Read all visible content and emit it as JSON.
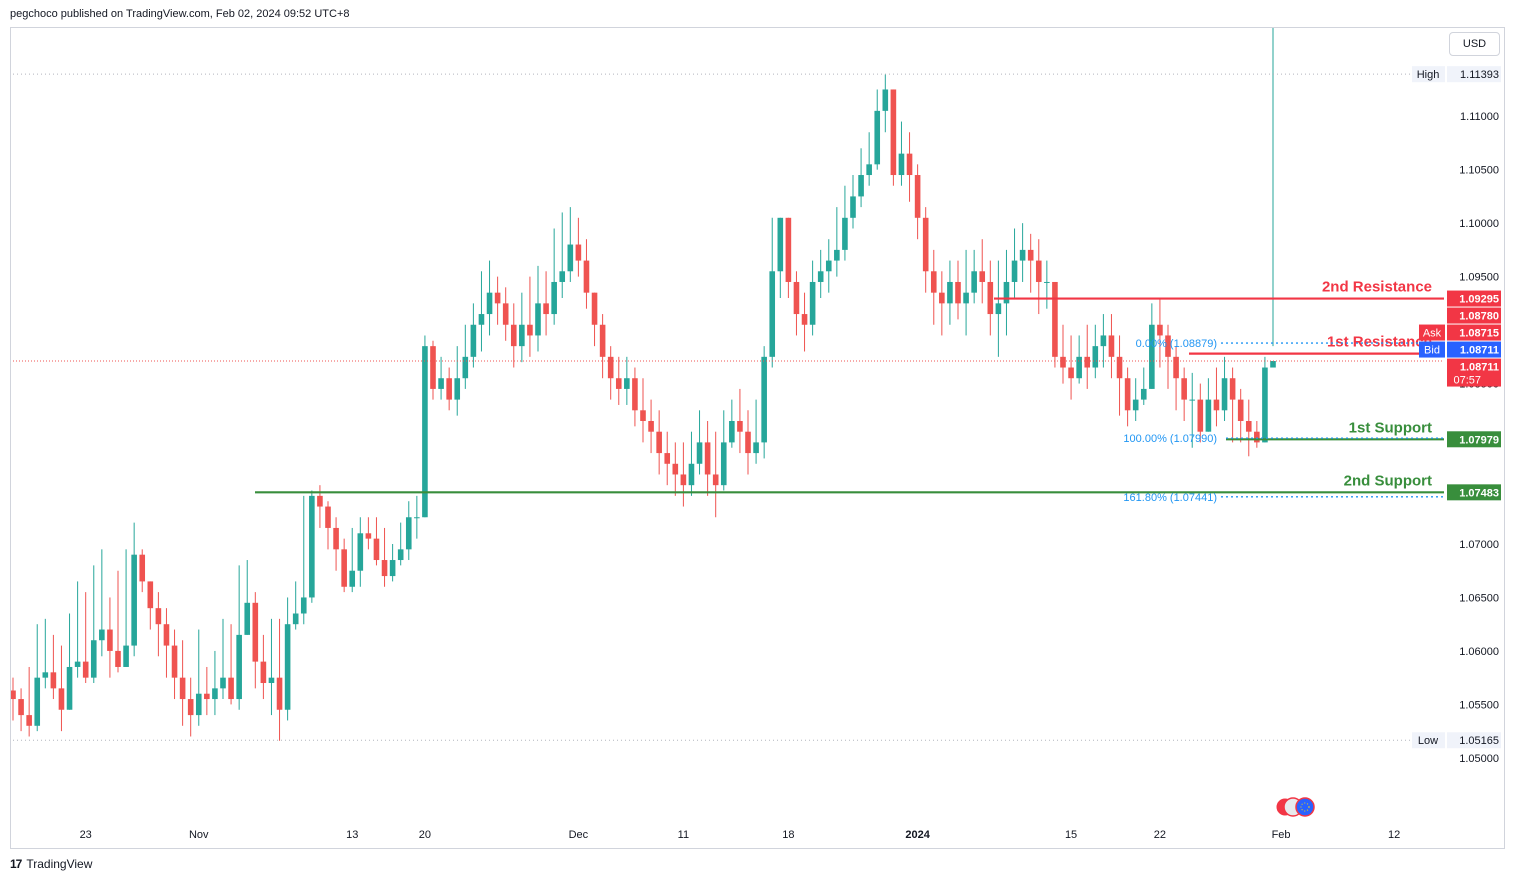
{
  "header": {
    "published": "pegchoco published on TradingView.com, Feb 02, 2024 09:52 UTC+8"
  },
  "currency_button": "USD",
  "footer": {
    "brand": "TradingView",
    "logo": "17"
  },
  "colors": {
    "up": "#26a69a",
    "down": "#ef5350",
    "resistance": "#f23645",
    "support": "#388e3c",
    "bid": "#2962ff",
    "fib": "#2196f3",
    "grid_text": "#131722"
  },
  "chart_data": {
    "type": "candlestick",
    "symbol": "EURUSD",
    "ylim": [
      1.0455,
      1.1175
    ],
    "y_ticks": [
      "1.11000",
      "1.10500",
      "1.10000",
      "1.09500",
      "1.09000",
      "1.08500",
      "1.08000",
      "1.07500",
      "1.07000",
      "1.06500",
      "1.06000",
      "1.05500",
      "1.05000"
    ],
    "x_ticks": [
      "23",
      "Nov",
      "13",
      "20",
      "Dec",
      "11",
      "18",
      "2024",
      "15",
      "22",
      "Feb",
      "12"
    ],
    "high": {
      "label": "High",
      "value": "1.11393"
    },
    "low": {
      "label": "Low",
      "value": "1.05165"
    },
    "price_tags": [
      {
        "value": "1.09295",
        "kind": "resistance"
      },
      {
        "value": "1.08780",
        "kind": "resistance"
      },
      {
        "label": "Ask",
        "value": "1.08715",
        "kind": "ask"
      },
      {
        "label": "Bid",
        "value": "1.08711",
        "kind": "bid"
      },
      {
        "value": "1.08711",
        "sub": "07:57",
        "kind": "last"
      },
      {
        "value": "1.07979",
        "kind": "support"
      },
      {
        "value": "1.07483",
        "kind": "support"
      }
    ],
    "levels": [
      {
        "name": "2nd Resistance",
        "value": 1.09295,
        "kind": "resistance"
      },
      {
        "name": "1st Resistance",
        "value": 1.0878,
        "kind": "resistance"
      },
      {
        "name": "1st Support",
        "value": 1.07979,
        "kind": "support"
      },
      {
        "name": "2nd Support",
        "value": 1.07483,
        "kind": "support"
      }
    ],
    "fib_labels": [
      {
        "text": "0.00% (1.08879)",
        "value": 1.08879
      },
      {
        "text": "100.00% (1.07990)",
        "value": 1.0799
      },
      {
        "text": "161.80% (1.07441)",
        "value": 1.07441
      }
    ],
    "closes": [
      1.0555,
      1.054,
      1.053,
      1.0575,
      1.058,
      1.0565,
      1.0545,
      1.0585,
      1.059,
      1.0575,
      1.061,
      1.062,
      1.06,
      1.0585,
      1.0605,
      1.069,
      1.0665,
      1.064,
      1.0625,
      1.0605,
      1.0575,
      1.0555,
      1.054,
      1.056,
      1.0555,
      1.0565,
      1.0575,
      1.0555,
      1.0615,
      1.0645,
      1.059,
      1.057,
      1.0575,
      1.0545,
      1.0625,
      1.0635,
      1.065,
      1.0745,
      1.0735,
      1.0715,
      1.0695,
      1.066,
      1.0675,
      1.071,
      1.0705,
      1.0685,
      1.067,
      1.0685,
      1.0695,
      1.0725,
      1.0725,
      1.0885,
      1.0845,
      1.0855,
      1.0835,
      1.0855,
      1.0875,
      1.0905,
      1.0915,
      1.0935,
      1.0925,
      1.0905,
      1.0885,
      1.0905,
      1.0895,
      1.0925,
      1.0915,
      1.0945,
      1.0955,
      1.098,
      1.0965,
      1.0935,
      1.0905,
      1.0875,
      1.0855,
      1.0845,
      1.0855,
      1.0825,
      1.0815,
      1.0805,
      1.0785,
      1.0775,
      1.0765,
      1.0755,
      1.0775,
      1.0795,
      1.0765,
      1.0755,
      1.0795,
      1.0815,
      1.0805,
      1.0785,
      1.0795,
      1.0875,
      1.0955,
      1.1005,
      1.0945,
      1.0915,
      1.0905,
      1.0945,
      1.0955,
      1.0965,
      1.0975,
      1.1005,
      1.1025,
      1.1045,
      1.1055,
      1.1105,
      1.1125,
      1.1045,
      1.1065,
      1.1045,
      1.1005,
      1.0955,
      1.0935,
      1.0925,
      1.0945,
      1.0925,
      1.0935,
      1.0955,
      1.0945,
      1.0915,
      1.0925,
      1.0945,
      1.0965,
      1.0975,
      1.0965,
      1.0945,
      1.0945,
      1.0875,
      1.0865,
      1.0855,
      1.0875,
      1.0865,
      1.0885,
      1.0895,
      1.0875,
      1.0855,
      1.0825,
      1.0835,
      1.0845,
      1.0905,
      1.0895,
      1.0875,
      1.0855,
      1.0835,
      1.0835,
      1.0805,
      1.0835,
      1.0825,
      1.0855,
      1.0835,
      1.0815,
      1.0805,
      1.0795,
      1.0865,
      1.08711
    ],
    "highs": [
      1.0575,
      1.0565,
      1.0585,
      1.0625,
      1.063,
      1.0615,
      1.0605,
      1.0635,
      1.0665,
      1.0655,
      1.068,
      1.0695,
      1.065,
      1.0675,
      1.0695,
      1.072,
      1.0695,
      1.0655,
      1.0655,
      1.064,
      1.062,
      1.061,
      1.0575,
      1.062,
      1.0585,
      1.06,
      1.063,
      1.0625,
      1.068,
      1.0685,
      1.0655,
      1.0615,
      1.063,
      1.063,
      1.065,
      1.0665,
      1.0745,
      1.075,
      1.0755,
      1.074,
      1.0725,
      1.0705,
      1.0715,
      1.0725,
      1.0725,
      1.0725,
      1.0715,
      1.07,
      1.072,
      1.074,
      1.0745,
      1.0895,
      1.089,
      1.0875,
      1.0865,
      1.0885,
      1.0905,
      1.0925,
      1.0955,
      1.0965,
      1.095,
      1.094,
      1.0925,
      1.0935,
      1.095,
      1.096,
      1.0955,
      1.0995,
      1.101,
      1.1015,
      1.1005,
      1.0985,
      1.0925,
      1.0915,
      1.0885,
      1.0875,
      1.0875,
      1.0865,
      1.0855,
      1.0835,
      1.0825,
      1.0805,
      1.0795,
      1.0795,
      1.0805,
      1.0825,
      1.0815,
      1.0805,
      1.0825,
      1.0835,
      1.0845,
      1.0825,
      1.0835,
      1.0885,
      1.1005,
      1.1005,
      1.0995,
      1.0955,
      1.0935,
      1.0965,
      1.0975,
      1.0985,
      1.1015,
      1.1035,
      1.1045,
      1.107,
      1.1085,
      1.1125,
      1.1139,
      1.1125,
      1.1095,
      1.1085,
      1.1055,
      1.1015,
      1.0975,
      1.0955,
      1.0965,
      1.0965,
      1.0975,
      1.0975,
      1.0985,
      1.0965,
      1.0965,
      1.0975,
      1.0995,
      1.1,
      1.099,
      1.0985,
      1.0965,
      1.0945,
      1.0905,
      1.0895,
      1.0895,
      1.0905,
      1.0905,
      1.0915,
      1.0915,
      1.0895,
      1.0865,
      1.0855,
      1.0865,
      1.0925,
      1.093,
      1.0905,
      1.0885,
      1.0865,
      1.086,
      1.085,
      1.0855,
      1.0865,
      1.0875,
      1.0865,
      1.0845,
      1.0835,
      1.0815,
      1.0875,
      1.0885
    ],
    "lows": [
      1.0535,
      1.0525,
      1.052,
      1.0525,
      1.0565,
      1.0555,
      1.0525,
      1.0545,
      1.0575,
      1.057,
      1.057,
      1.0595,
      1.0575,
      1.058,
      1.0585,
      1.0595,
      1.0655,
      1.062,
      1.0595,
      1.0575,
      1.0555,
      1.053,
      1.052,
      1.053,
      1.054,
      1.054,
      1.0555,
      1.055,
      1.0545,
      1.0615,
      1.0565,
      1.0555,
      1.054,
      1.0516,
      1.0535,
      1.062,
      1.0625,
      1.0645,
      1.0715,
      1.0695,
      1.0675,
      1.0655,
      1.0655,
      1.066,
      1.0695,
      1.068,
      1.066,
      1.0665,
      1.068,
      1.0685,
      1.0705,
      1.0725,
      1.0835,
      1.0835,
      1.0825,
      1.082,
      1.0845,
      1.0865,
      1.088,
      1.0895,
      1.0905,
      1.089,
      1.0865,
      1.087,
      1.0875,
      1.088,
      1.0895,
      1.0905,
      1.093,
      1.0945,
      1.095,
      1.092,
      1.0885,
      1.0855,
      1.0835,
      1.083,
      1.083,
      1.081,
      1.0795,
      1.0785,
      1.0765,
      1.0755,
      1.0745,
      1.0735,
      1.0745,
      1.0765,
      1.0745,
      1.0725,
      1.075,
      1.079,
      1.0785,
      1.0765,
      1.0775,
      1.078,
      1.0865,
      1.093,
      1.093,
      1.0895,
      1.088,
      1.0895,
      1.093,
      1.0935,
      1.095,
      1.0965,
      1.0995,
      1.1015,
      1.1035,
      1.105,
      1.1085,
      1.1035,
      1.1035,
      1.102,
      1.0985,
      1.0935,
      1.0905,
      1.0895,
      1.0905,
      1.091,
      1.0895,
      1.0925,
      1.0925,
      1.0895,
      1.0875,
      1.0895,
      1.093,
      1.0945,
      1.0935,
      1.0915,
      1.092,
      1.0865,
      1.085,
      1.0835,
      1.085,
      1.0845,
      1.0855,
      1.0865,
      1.0855,
      1.082,
      1.081,
      1.0815,
      1.083,
      1.0885,
      1.0865,
      1.0845,
      1.0825,
      1.0815,
      1.079,
      1.0795,
      1.0805,
      1.081,
      1.0815,
      1.0795,
      1.0795,
      1.0782,
      1.079,
      1.0855
    ]
  }
}
